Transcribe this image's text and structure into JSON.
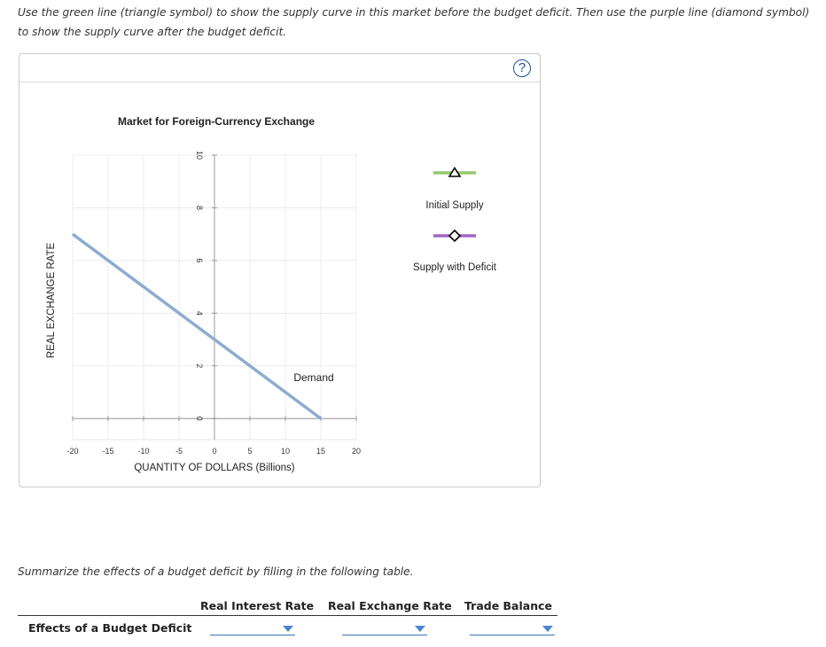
{
  "instructions": "Use the green line (triangle symbol) to show the supply curve in this market before the budget deficit. Then use the purple line (diamond symbol) to show the supply curve after the budget deficit.",
  "help_label": "?",
  "chart_data": {
    "type": "line",
    "title": "Market for Foreign-Currency Exchange",
    "xlabel": "QUANTITY OF DOLLARS (Billions)",
    "ylabel": "REAL EXCHANGE RATE",
    "xlim": [
      -20,
      20
    ],
    "ylim": [
      -0.8,
      10
    ],
    "x_ticks": [
      -20,
      -15,
      -10,
      -5,
      0,
      5,
      10,
      15,
      20
    ],
    "y_ticks": [
      2,
      4,
      6,
      8,
      10
    ],
    "grid": true,
    "series": [
      {
        "name": "Demand",
        "color": "#8eacd0",
        "x": [
          -20,
          15
        ],
        "y": [
          7,
          0
        ]
      }
    ],
    "legend": [
      {
        "name": "Initial Supply",
        "color": "#93c86d",
        "marker": "triangle"
      },
      {
        "name": "Supply with Deficit",
        "color": "#a266c4",
        "marker": "diamond"
      }
    ]
  },
  "summary_prompt": "Summarize the effects of a budget deficit by filling in the following table.",
  "table": {
    "columns": [
      "Real Interest Rate",
      "Real Exchange Rate",
      "Trade Balance"
    ],
    "row_label": "Effects of a Budget Deficit"
  }
}
